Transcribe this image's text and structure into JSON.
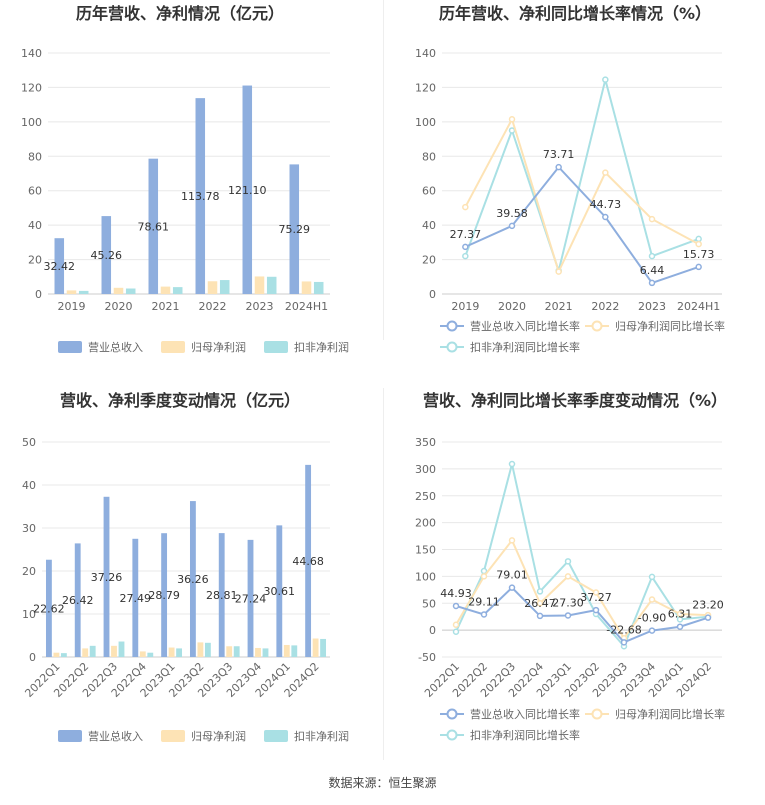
{
  "source_label": "数据来源：恒生聚源",
  "chart_data": [
    {
      "type": "bar",
      "title": "历年营收、净利情况（亿元）",
      "categories": [
        "2019",
        "2020",
        "2021",
        "2022",
        "2023",
        "2024H1"
      ],
      "ylim": [
        0,
        140
      ],
      "yticks": [
        0,
        20,
        40,
        60,
        80,
        100,
        120,
        140
      ],
      "grid": true,
      "legend_position": "bottom",
      "series": [
        {
          "name": "营业总收入",
          "color": "#8eaede",
          "values": [
            32.42,
            45.26,
            78.61,
            113.78,
            121.1,
            75.29
          ],
          "labels": [
            "32.42",
            "45.26",
            "78.61",
            "113.78",
            "121.10",
            "75.29"
          ]
        },
        {
          "name": "归母净利润",
          "color": "#fde3b5",
          "values": [
            2.1,
            3.6,
            4.3,
            7.4,
            10.2,
            7.3
          ]
        },
        {
          "name": "扣非净利润",
          "color": "#a9e0e4",
          "values": [
            1.8,
            3.2,
            4.0,
            8.1,
            10.0,
            7.0
          ]
        }
      ]
    },
    {
      "type": "line",
      "title": "历年营收、净利同比增长率情况（%）",
      "categories": [
        "2019",
        "2020",
        "2021",
        "2022",
        "2023",
        "2024H1"
      ],
      "ylim": [
        0,
        140
      ],
      "yticks": [
        0,
        20,
        40,
        60,
        80,
        100,
        120,
        140
      ],
      "grid": true,
      "legend_position": "bottom",
      "series": [
        {
          "name": "营业总收入同比增长率",
          "color": "#8eaede",
          "values": [
            27.37,
            39.58,
            73.71,
            44.73,
            6.44,
            15.73
          ],
          "labels": [
            "27.37",
            "39.58",
            "73.71",
            "44.73",
            "6.44",
            "15.73"
          ]
        },
        {
          "name": "归母净利润同比增长率",
          "color": "#fde3b5",
          "values": [
            50.5,
            101.5,
            13.0,
            70.5,
            43.5,
            29.0
          ]
        },
        {
          "name": "扣非净利润同比增长率",
          "color": "#a9e0e4",
          "values": [
            22.0,
            95.0,
            13.5,
            124.5,
            22.0,
            32.0
          ]
        }
      ]
    },
    {
      "type": "bar",
      "title": "营收、净利季度变动情况（亿元）",
      "categories": [
        "2022Q1",
        "2022Q2",
        "2022Q3",
        "2022Q4",
        "2023Q1",
        "2023Q2",
        "2023Q3",
        "2023Q4",
        "2024Q1",
        "2024Q2"
      ],
      "ylim": [
        0,
        50
      ],
      "yticks": [
        0,
        10,
        20,
        30,
        40,
        50
      ],
      "grid": true,
      "legend_position": "bottom",
      "series": [
        {
          "name": "营业总收入",
          "color": "#8eaede",
          "values": [
            22.62,
            26.42,
            37.26,
            27.49,
            28.79,
            36.26,
            28.81,
            27.24,
            30.61,
            44.68
          ],
          "labels": [
            "22.62",
            "26.42",
            "37.26",
            "27.49",
            "28.79",
            "36.26",
            "28.81",
            "27.24",
            "30.61",
            "44.68"
          ]
        },
        {
          "name": "归母净利润",
          "color": "#fde3b5",
          "values": [
            1.0,
            2.0,
            2.6,
            1.3,
            2.2,
            3.4,
            2.5,
            2.1,
            2.8,
            4.3
          ]
        },
        {
          "name": "扣非净利润",
          "color": "#a9e0e4",
          "values": [
            0.9,
            2.6,
            3.6,
            1.0,
            2.0,
            3.3,
            2.5,
            2.0,
            2.7,
            4.2
          ]
        }
      ]
    },
    {
      "type": "line",
      "title": "营收、净利同比增长率季度变动情况（%）",
      "categories": [
        "2022Q1",
        "2022Q2",
        "2022Q3",
        "2022Q4",
        "2023Q1",
        "2023Q2",
        "2023Q3",
        "2023Q4",
        "2024Q1",
        "2024Q2"
      ],
      "ylim": [
        -50,
        350
      ],
      "yticks": [
        -50,
        0,
        50,
        100,
        150,
        200,
        250,
        300,
        350
      ],
      "grid": true,
      "legend_position": "bottom",
      "series": [
        {
          "name": "营业总收入同比增长率",
          "color": "#8eaede",
          "values": [
            44.93,
            29.11,
            79.01,
            26.47,
            27.3,
            37.27,
            -22.68,
            -0.9,
            6.31,
            23.2
          ],
          "labels": [
            "44.93",
            "29.11",
            "79.01",
            "26.47",
            "27.30",
            "37.27",
            "-22.68",
            "-0.90",
            "6.31",
            "23.20"
          ]
        },
        {
          "name": "归母净利润同比增长率",
          "color": "#fde3b5",
          "values": [
            10,
            100,
            167,
            50,
            100,
            70,
            -15,
            57,
            30,
            28
          ]
        },
        {
          "name": "扣非净利润同比增长率",
          "color": "#a9e0e4",
          "values": [
            -3,
            110,
            309,
            72,
            128,
            30,
            -30,
            99,
            20,
            25
          ]
        }
      ]
    }
  ]
}
